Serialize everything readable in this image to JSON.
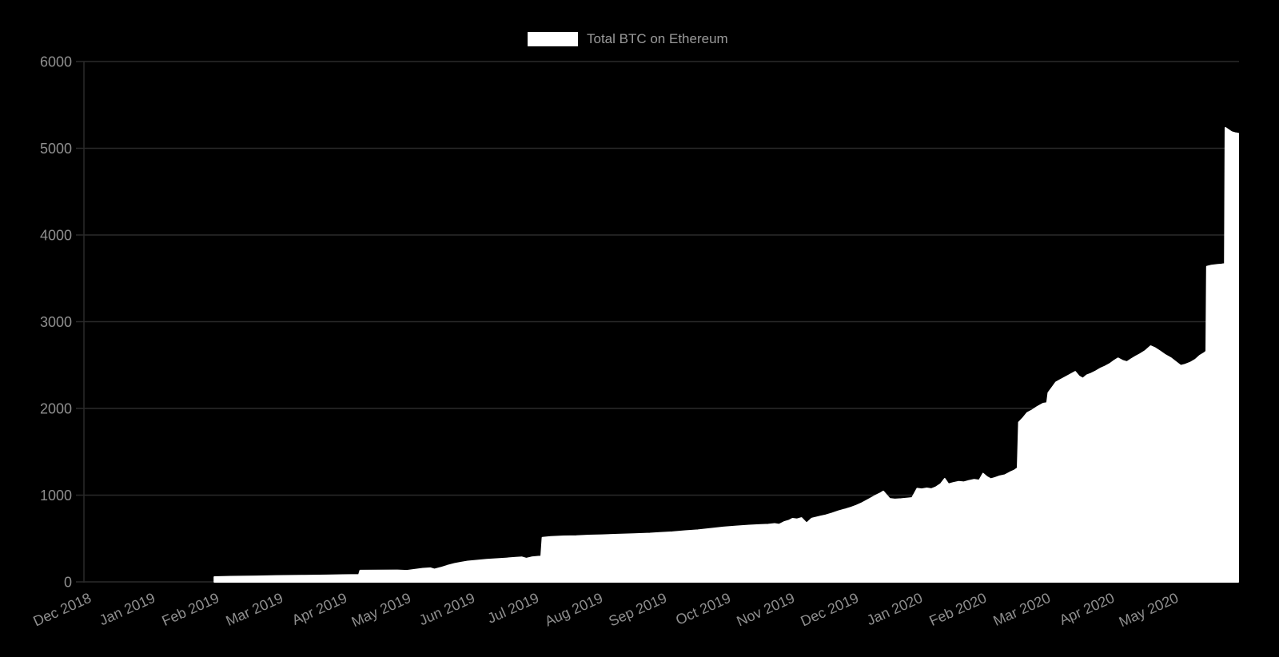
{
  "colors": {
    "background": "#000000",
    "grid": "#2a2a2a",
    "axis": "#2a2a2a",
    "tick_label": "#8f8f8f",
    "legend_label": "#9a9a9a",
    "series_fill": "#ffffff"
  },
  "chart_data": {
    "type": "area",
    "title": "Total BTC on Ethereum",
    "legend_position": "top",
    "grid": "horizontal only",
    "xlabel": "",
    "ylabel": "",
    "x_unit": "months after Dec 2018 tick (0 = Dec 2018, 17 = May 2020, data ends ~18.05 = early Jun 2020)",
    "x_tick_labels": [
      "Dec 2018",
      "Jan 2019",
      "Feb 2019",
      "Mar 2019",
      "Apr 2019",
      "May 2019",
      "Jun 2019",
      "Jul 2019",
      "Aug 2019",
      "Sep 2019",
      "Oct 2019",
      "Nov 2019",
      "Dec 2019",
      "Jan 2020",
      "Feb 2020",
      "Mar 2020",
      "Apr 2020",
      "May 2020"
    ],
    "y_ticks": [
      0,
      1000,
      2000,
      3000,
      4000,
      5000,
      6000
    ],
    "ylim": [
      0,
      6000
    ],
    "series": [
      {
        "name": "Total BTC on Ethereum",
        "color": "#ffffff",
        "points": [
          [
            2.04,
            55
          ],
          [
            2.3,
            60
          ],
          [
            2.7,
            64
          ],
          [
            3.0,
            68
          ],
          [
            3.4,
            71
          ],
          [
            3.8,
            75
          ],
          [
            4.05,
            78
          ],
          [
            4.3,
            80
          ],
          [
            4.32,
            130
          ],
          [
            4.6,
            132
          ],
          [
            4.9,
            133
          ],
          [
            5.05,
            128
          ],
          [
            5.18,
            140
          ],
          [
            5.3,
            152
          ],
          [
            5.42,
            158
          ],
          [
            5.48,
            143
          ],
          [
            5.58,
            162
          ],
          [
            5.68,
            185
          ],
          [
            5.8,
            208
          ],
          [
            5.9,
            222
          ],
          [
            6.0,
            235
          ],
          [
            6.15,
            245
          ],
          [
            6.3,
            255
          ],
          [
            6.45,
            263
          ],
          [
            6.6,
            270
          ],
          [
            6.75,
            278
          ],
          [
            6.85,
            283
          ],
          [
            6.92,
            268
          ],
          [
            7.0,
            283
          ],
          [
            7.1,
            290
          ],
          [
            7.15,
            293
          ],
          [
            7.17,
            510
          ],
          [
            7.3,
            518
          ],
          [
            7.5,
            525
          ],
          [
            7.7,
            528
          ],
          [
            7.9,
            535
          ],
          [
            8.1,
            538
          ],
          [
            8.35,
            545
          ],
          [
            8.6,
            550
          ],
          [
            8.85,
            558
          ],
          [
            9.0,
            565
          ],
          [
            9.2,
            572
          ],
          [
            9.4,
            585
          ],
          [
            9.6,
            595
          ],
          [
            9.8,
            612
          ],
          [
            10.0,
            628
          ],
          [
            10.2,
            640
          ],
          [
            10.4,
            650
          ],
          [
            10.55,
            655
          ],
          [
            10.7,
            660
          ],
          [
            10.8,
            668
          ],
          [
            10.87,
            660
          ],
          [
            10.95,
            690
          ],
          [
            11.02,
            705
          ],
          [
            11.08,
            728
          ],
          [
            11.15,
            722
          ],
          [
            11.22,
            736
          ],
          [
            11.3,
            676
          ],
          [
            11.38,
            730
          ],
          [
            11.45,
            742
          ],
          [
            11.52,
            755
          ],
          [
            11.6,
            768
          ],
          [
            11.7,
            790
          ],
          [
            11.8,
            815
          ],
          [
            11.9,
            835
          ],
          [
            12.0,
            858
          ],
          [
            12.08,
            880
          ],
          [
            12.15,
            902
          ],
          [
            12.22,
            930
          ],
          [
            12.3,
            962
          ],
          [
            12.38,
            995
          ],
          [
            12.45,
            1020
          ],
          [
            12.5,
            1042
          ],
          [
            12.55,
            1000
          ],
          [
            12.6,
            958
          ],
          [
            12.68,
            950
          ],
          [
            12.78,
            955
          ],
          [
            12.88,
            962
          ],
          [
            12.95,
            968
          ],
          [
            13.03,
            1075
          ],
          [
            13.1,
            1068
          ],
          [
            13.18,
            1078
          ],
          [
            13.25,
            1070
          ],
          [
            13.32,
            1090
          ],
          [
            13.4,
            1130
          ],
          [
            13.46,
            1188
          ],
          [
            13.52,
            1125
          ],
          [
            13.6,
            1142
          ],
          [
            13.68,
            1155
          ],
          [
            13.76,
            1148
          ],
          [
            13.84,
            1165
          ],
          [
            13.92,
            1178
          ],
          [
            14.0,
            1170
          ],
          [
            14.06,
            1248
          ],
          [
            14.12,
            1210
          ],
          [
            14.18,
            1185
          ],
          [
            14.25,
            1200
          ],
          [
            14.32,
            1218
          ],
          [
            14.4,
            1230
          ],
          [
            14.48,
            1262
          ],
          [
            14.55,
            1285
          ],
          [
            14.6,
            1312
          ],
          [
            14.62,
            1840
          ],
          [
            14.68,
            1885
          ],
          [
            14.75,
            1948
          ],
          [
            14.82,
            1975
          ],
          [
            14.9,
            2015
          ],
          [
            15.0,
            2055
          ],
          [
            15.06,
            2062
          ],
          [
            15.08,
            2180
          ],
          [
            15.14,
            2240
          ],
          [
            15.2,
            2300
          ],
          [
            15.27,
            2330
          ],
          [
            15.34,
            2358
          ],
          [
            15.42,
            2390
          ],
          [
            15.5,
            2422
          ],
          [
            15.56,
            2370
          ],
          [
            15.62,
            2345
          ],
          [
            15.68,
            2382
          ],
          [
            15.75,
            2402
          ],
          [
            15.82,
            2428
          ],
          [
            15.9,
            2462
          ],
          [
            15.97,
            2485
          ],
          [
            16.04,
            2512
          ],
          [
            16.1,
            2545
          ],
          [
            16.17,
            2578
          ],
          [
            16.24,
            2550
          ],
          [
            16.31,
            2535
          ],
          [
            16.38,
            2570
          ],
          [
            16.45,
            2600
          ],
          [
            16.52,
            2628
          ],
          [
            16.6,
            2665
          ],
          [
            16.68,
            2718
          ],
          [
            16.75,
            2695
          ],
          [
            16.82,
            2662
          ],
          [
            16.9,
            2620
          ],
          [
            17.0,
            2578
          ],
          [
            17.08,
            2532
          ],
          [
            17.15,
            2492
          ],
          [
            17.22,
            2505
          ],
          [
            17.3,
            2528
          ],
          [
            17.38,
            2562
          ],
          [
            17.45,
            2608
          ],
          [
            17.52,
            2640
          ],
          [
            17.55,
            2658
          ],
          [
            17.56,
            3635
          ],
          [
            17.63,
            3648
          ],
          [
            17.72,
            3655
          ],
          [
            17.79,
            3660
          ],
          [
            17.84,
            3665
          ],
          [
            17.85,
            5235
          ],
          [
            17.9,
            5210
          ],
          [
            17.95,
            5185
          ],
          [
            18.0,
            5175
          ],
          [
            18.05,
            5170
          ]
        ]
      }
    ]
  }
}
